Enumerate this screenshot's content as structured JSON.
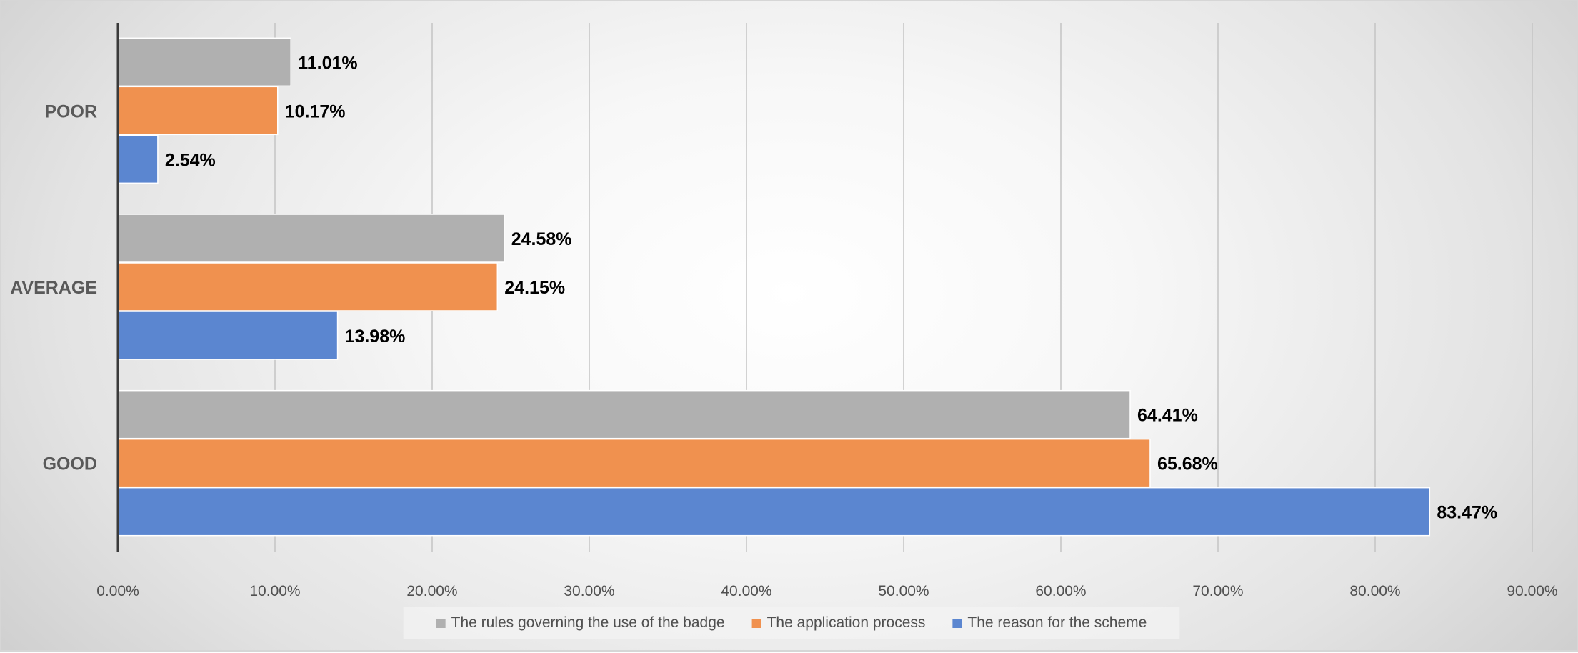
{
  "chart_data": {
    "type": "bar",
    "orientation": "horizontal",
    "categories": [
      "POOR",
      "AVERAGE",
      "GOOD"
    ],
    "series": [
      {
        "name": "The rules governing the use of the badge",
        "color": "#b0b0b0",
        "values": [
          11.01,
          24.58,
          64.41
        ],
        "labels": [
          "11.01%",
          "24.58%",
          "64.41%"
        ]
      },
      {
        "name": "The application process",
        "color": "#f0914f",
        "values": [
          10.17,
          24.15,
          65.68
        ],
        "labels": [
          "10.17%",
          "24.15%",
          "65.68%"
        ]
      },
      {
        "name": "The reason for the scheme",
        "color": "#5b86d0",
        "values": [
          2.54,
          13.98,
          83.47
        ],
        "labels": [
          "2.54%",
          "13.98%",
          "83.47%"
        ]
      }
    ],
    "xlim": [
      0,
      90
    ],
    "xticks": [
      0,
      10,
      20,
      30,
      40,
      50,
      60,
      70,
      80,
      90
    ],
    "xtick_labels": [
      "0.00%",
      "10.00%",
      "20.00%",
      "30.00%",
      "40.00%",
      "50.00%",
      "60.00%",
      "70.00%",
      "80.00%",
      "90.00%"
    ],
    "title": "",
    "xlabel": "",
    "ylabel": "",
    "grid": "vertical",
    "legend_position": "bottom"
  }
}
